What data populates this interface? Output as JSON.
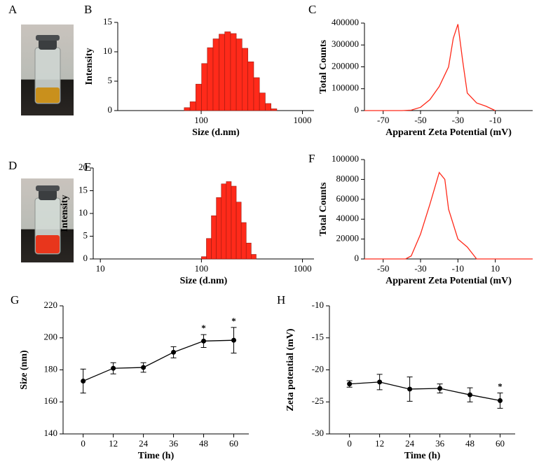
{
  "photo_panels": [
    {
      "label": "A"
    },
    {
      "label": "D"
    }
  ],
  "chart_data": [
    {
      "panel": "B",
      "type": "histogram",
      "xlabel": "Size (d.nm)",
      "ylabel": "Intensity",
      "xscale": "log",
      "color": "#ff2a1a",
      "bins": [
        68,
        77.6,
        88.5,
        101,
        115,
        131,
        150,
        171,
        195,
        222,
        253,
        289,
        330,
        376,
        429,
        489,
        558
      ],
      "values": [
        0.5,
        1.5,
        4.5,
        8,
        10.7,
        12.2,
        13,
        13.4,
        13.1,
        12.2,
        10.6,
        8.3,
        5.6,
        3,
        1.2,
        0.3
      ],
      "xlim": [
        15,
        1300
      ],
      "xticks": [
        100,
        1000
      ],
      "ylim": [
        0,
        15
      ],
      "yticks": [
        0,
        5,
        10,
        15
      ]
    },
    {
      "panel": "C",
      "type": "line",
      "xlabel": "Apparent Zeta Potential (mV)",
      "ylabel": "Total Counts",
      "color": "#ff2a1a",
      "x": [
        -80,
        -70,
        -60,
        -55,
        -50,
        -45,
        -40,
        -35,
        -32.5,
        -30,
        -27.5,
        -25,
        -20,
        -15,
        -10
      ],
      "values": [
        0,
        0,
        0,
        2000,
        15000,
        50000,
        110000,
        200000,
        330000,
        395000,
        230000,
        80000,
        35000,
        20000,
        0
      ],
      "xlim": [
        -80,
        10
      ],
      "xticks": [
        -70,
        -50,
        -30,
        -10
      ],
      "ylim": [
        0,
        400000
      ],
      "yticks": [
        0,
        100000,
        200000,
        300000,
        400000
      ]
    },
    {
      "panel": "E",
      "type": "histogram",
      "xlabel": "Size (d.nm)",
      "ylabel": "Intensity",
      "xscale": "log",
      "color": "#ff2a1a",
      "bins": [
        100,
        112,
        125.4,
        140.5,
        157.4,
        176.2,
        197.4,
        221.1,
        247.6,
        277.3,
        310.6,
        347.9
      ],
      "values": [
        0.5,
        4.5,
        9.5,
        13.5,
        16.5,
        17,
        16,
        12.5,
        8,
        3.5,
        1
      ],
      "xlim": [
        8.5,
        1300
      ],
      "xticks": [
        10,
        100,
        1000
      ],
      "ylim": [
        0,
        20
      ],
      "yticks": [
        0,
        5,
        10,
        15,
        20
      ]
    },
    {
      "panel": "F",
      "type": "line",
      "xlabel": "Apparent Zeta Potential (mV)",
      "ylabel": "Total Counts",
      "color": "#ff2a1a",
      "x": [
        -60,
        -38,
        -35,
        -30,
        -25,
        -20,
        -17,
        -15,
        -10,
        -5,
        0,
        30
      ],
      "values": [
        0,
        0,
        3000,
        25000,
        55000,
        87000,
        80000,
        50000,
        20000,
        12000,
        0,
        0
      ],
      "xlim": [
        -60,
        30
      ],
      "xticks": [
        -50,
        -30,
        -10,
        10
      ],
      "ylim": [
        0,
        100000
      ],
      "yticks": [
        0,
        20000,
        40000,
        60000,
        80000,
        100000
      ]
    },
    {
      "panel": "G",
      "type": "errorbar",
      "xlabel": "Time (h)",
      "ylabel": "Size (nm)",
      "color": "#000000",
      "x": [
        0,
        12,
        24,
        36,
        48,
        60
      ],
      "values": [
        173,
        181,
        181.5,
        191,
        198,
        198.5
      ],
      "errors": [
        7.5,
        3.5,
        3,
        3.5,
        4,
        8
      ],
      "annotations": [
        {
          "x": 48,
          "text": "*"
        },
        {
          "x": 60,
          "text": "*"
        }
      ],
      "xlim": [
        -8,
        66
      ],
      "xticks": [
        0,
        12,
        24,
        36,
        48,
        60
      ],
      "ylim": [
        140,
        220
      ],
      "yticks": [
        140,
        160,
        180,
        200,
        220
      ]
    },
    {
      "panel": "H",
      "type": "errorbar",
      "xlabel": "Time (h)",
      "ylabel": "Zeta potential (mV)",
      "color": "#000000",
      "x": [
        0,
        12,
        24,
        36,
        48,
        60
      ],
      "values": [
        -22.2,
        -21.9,
        -23,
        -22.9,
        -23.9,
        -24.8
      ],
      "errors": [
        0.5,
        1.2,
        1.9,
        0.7,
        1.1,
        1.2
      ],
      "annotations": [
        {
          "x": 60,
          "text": "*"
        }
      ],
      "xlim": [
        -8,
        66
      ],
      "xticks": [
        0,
        12,
        24,
        36,
        48,
        60
      ],
      "ylim": [
        -30,
        -10
      ],
      "yticks": [
        -30,
        -25,
        -20,
        -15,
        -10
      ]
    }
  ]
}
